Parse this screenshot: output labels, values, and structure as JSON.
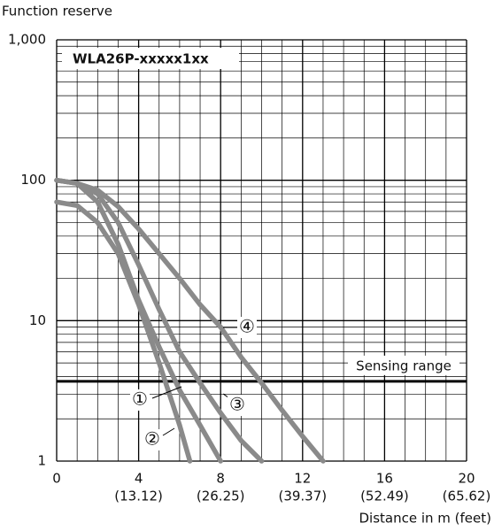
{
  "chart_data": {
    "type": "line",
    "title": "WLA26P-xxxxx1xx",
    "y_label": "Function reserve",
    "x_label": "Distance in m (feet)",
    "log_y": true,
    "grid": true,
    "xlim": [
      0,
      20
    ],
    "ylim": [
      1,
      1000
    ],
    "xticks": [
      0,
      4,
      8,
      12,
      16,
      20
    ],
    "xticks_feet": [
      null,
      "(13.12)",
      "(26.25)",
      "(39.37)",
      "(52.49)",
      "(65.62)"
    ],
    "yticks": [
      1,
      10,
      100,
      {
        "value": 1000,
        "label": "1,000"
      }
    ],
    "x_minor_gridlines": [
      1,
      2,
      3,
      5,
      6,
      7,
      9,
      10,
      11,
      13,
      14,
      15,
      17,
      18,
      19
    ],
    "y_minor_gridlines": [
      2,
      3,
      4,
      5,
      6,
      7,
      8,
      9,
      20,
      30,
      40,
      50,
      60,
      70,
      80,
      90,
      200,
      300,
      400,
      500,
      600,
      700,
      800,
      900
    ],
    "threshold": {
      "label": "Sensing range",
      "value": 3.7
    },
    "series": [
      {
        "name": "①",
        "color": "#8a8a8a",
        "x": [
          0,
          1,
          2,
          3,
          4,
          5,
          6,
          7,
          8
        ],
        "values": [
          100,
          95,
          70,
          35,
          14,
          6.5,
          3.2,
          1.8,
          1
        ]
      },
      {
        "name": "②",
        "color": "#8a8a8a",
        "x": [
          0,
          1,
          2,
          3,
          4,
          5,
          6,
          6.5
        ],
        "values": [
          70,
          66,
          50,
          30,
          13,
          5,
          1.8,
          1
        ]
      },
      {
        "name": "③",
        "color": "#8a8a8a",
        "x": [
          0,
          1,
          2,
          3,
          4,
          5,
          6,
          7,
          8,
          9,
          10
        ],
        "values": [
          100,
          95,
          80,
          50,
          25,
          12,
          6,
          3.6,
          2.2,
          1.4,
          1
        ]
      },
      {
        "name": "④",
        "color": "#8a8a8a",
        "x": [
          0,
          1,
          2,
          3,
          4,
          5,
          6,
          7,
          8,
          9,
          10,
          11,
          12,
          13
        ],
        "values": [
          100,
          95,
          85,
          65,
          45,
          30,
          20,
          13,
          9,
          5.5,
          3.6,
          2.3,
          1.5,
          1
        ]
      }
    ]
  }
}
